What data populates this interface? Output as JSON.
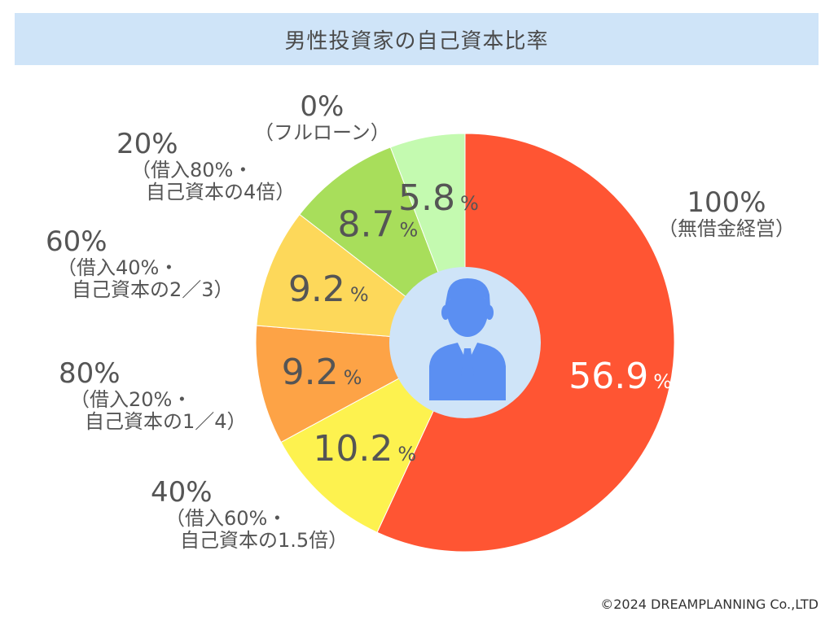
{
  "title": "男性投資家の自己資本比率",
  "chart_data": {
    "type": "pie",
    "title": "男性投資家の自己資本比率",
    "unit": "%",
    "slices": [
      {
        "category": "100%",
        "note": "（無借金経営）",
        "value": 56.9,
        "label": "56.9",
        "color": "#ff5533",
        "text_color": "#ffffff"
      },
      {
        "category": "40%",
        "note": "（借入60%・自己資本の1.5倍）",
        "note_lines": [
          "（借入60%・",
          "自己資本の1.5倍）"
        ],
        "value": 10.2,
        "label": "10.2",
        "color": "#fdf24f",
        "text_color": "#555555"
      },
      {
        "category": "80%",
        "note": "（借入20%・自己資本の1／4）",
        "note_lines": [
          "（借入20%・",
          "自己資本の1／4）"
        ],
        "value": 9.2,
        "label": "9.2",
        "color": "#fda346",
        "text_color": "#555555"
      },
      {
        "category": "60%",
        "note": "（借入40%・自己資本の2／3）",
        "note_lines": [
          "（借入40%・",
          "自己資本の2／3）"
        ],
        "value": 9.2,
        "label": "9.2",
        "color": "#fdd85a",
        "text_color": "#555555"
      },
      {
        "category": "20%",
        "note": "（借入80%・自己資本の4倍）",
        "note_lines": [
          "（借入80%・",
          "自己資本の4倍）"
        ],
        "value": 8.7,
        "label": "8.7",
        "color": "#a8de5b",
        "text_color": "#555555"
      },
      {
        "category": "0%",
        "note": "（フルローン）",
        "value": 5.8,
        "label": "5.8",
        "color": "#c4fab0",
        "text_color": "#555555"
      }
    ]
  },
  "center_icon": "businessman-icon",
  "colors": {
    "center_circle": "#cfe4f8",
    "icon": "#5b8ff2",
    "title_bg": "#cfe4f8"
  },
  "copyright": "©2024 DREAMPLANNING Co.,LTD"
}
